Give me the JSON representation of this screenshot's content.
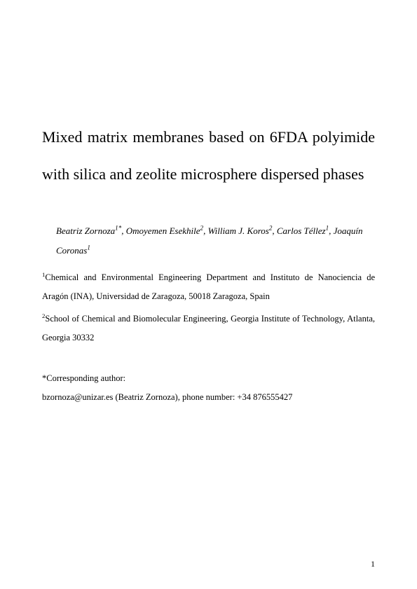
{
  "title": "Mixed matrix membranes based on 6FDA polyimide with silica and zeolite microsphere dispersed phases",
  "authors_html": "Beatriz Zornoza<sup>1*</sup>, Omoyemen Esekhile<sup>2</sup>, William J. Koros<sup>2</sup>, Carlos Téllez<sup>1</sup>, Joaquín Coronas<sup>1</sup>",
  "affiliations": [
    {
      "sup": "1",
      "text": "Chemical and Environmental Engineering Department and Instituto de Nanociencia de Aragón (INA), Universidad de Zaragoza, 50018 Zaragoza, Spain"
    },
    {
      "sup": "2",
      "text": "School of Chemical and Biomolecular Engineering, Georgia Institute of Technology, Atlanta, Georgia 30332"
    }
  ],
  "corresponding_label": "*Corresponding author:",
  "corresponding_info": "bzornoza@unizar.es (Beatriz Zornoza), phone number: +34 876555427",
  "page_number": "1"
}
